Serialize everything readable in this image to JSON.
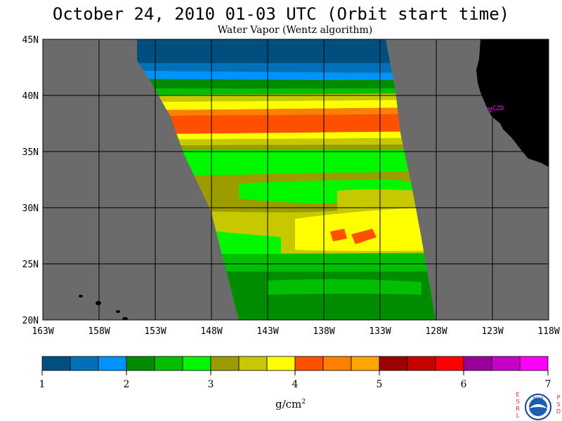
{
  "title": "October 24, 2010  01-03 UTC  (Orbit start time)",
  "subtitle": "Water Vapor (Wentz algorithm)",
  "lat_labels": [
    "45N",
    "40N",
    "35N",
    "30N",
    "25N",
    "20N"
  ],
  "lon_labels": [
    "163W",
    "158W",
    "153W",
    "148W",
    "143W",
    "138W",
    "133W",
    "128W",
    "123W",
    "118W"
  ],
  "station_label": "CZD",
  "colorbar": {
    "colors": [
      "#004f7f",
      "#0070b8",
      "#0093ff",
      "#008c00",
      "#00bf00",
      "#00f700",
      "#9c9c00",
      "#c8c800",
      "#ffff00",
      "#ff5000",
      "#ff7f00",
      "#ffa500",
      "#9c0000",
      "#c80000",
      "#ff0000",
      "#9c009c",
      "#c800c8",
      "#ff00ff"
    ],
    "tick_labels": [
      "1",
      "2",
      "3",
      "4",
      "5",
      "6",
      "7"
    ],
    "units_base": "g/cm",
    "units_exp": "2"
  },
  "logo": {
    "left_letters": "ESRL",
    "right_letters": "PSD",
    "center": "NOAA"
  }
}
